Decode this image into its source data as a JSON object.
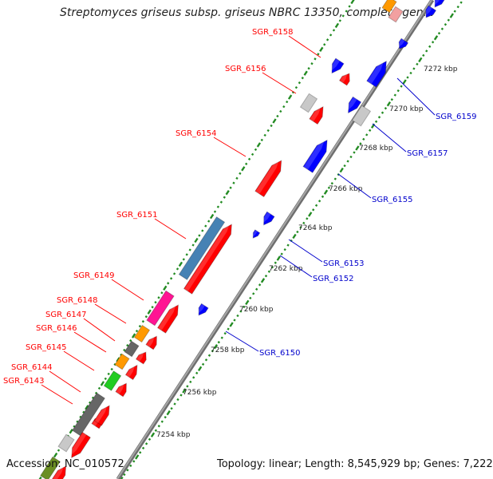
{
  "title": "Streptomyces griseus subsp. griseus NBRC 13350, complete gen...",
  "footer": {
    "accession": "Accession: NC_010572",
    "topology": "Topology: linear; Length: 8,545,929 bp; Genes: 7,222"
  },
  "ticks": [
    "7254 kbp",
    "7256 kbp",
    "7258 kbp",
    "7260 kbp",
    "7262 kbp",
    "7264 kbp",
    "7266 kbp",
    "7268 kbp",
    "7270 kbp",
    "7272 kbp"
  ],
  "genes_reverse": [
    {
      "label": "SGR_6158",
      "color": "#ff0000"
    },
    {
      "label": "SGR_6156",
      "color": "#ff0000"
    },
    {
      "label": "SGR_6154",
      "color": "#ff0000"
    },
    {
      "label": "SGR_6151",
      "color": "#ff0000"
    },
    {
      "label": "SGR_6149",
      "color": "#ff0000"
    },
    {
      "label": "SGR_6148",
      "color": "#ff0000"
    },
    {
      "label": "SGR_6147",
      "color": "#ff0000"
    },
    {
      "label": "SGR_6146",
      "color": "#ff0000"
    },
    {
      "label": "SGR_6145",
      "color": "#ff0000"
    },
    {
      "label": "SGR_6144",
      "color": "#ff0000"
    },
    {
      "label": "SGR_6143",
      "color": "#ff0000"
    }
  ],
  "genes_forward": [
    {
      "label": "SGR_6159",
      "color": "#0000cc"
    },
    {
      "label": "SGR_6157",
      "color": "#0000cc"
    },
    {
      "label": "SGR_6155",
      "color": "#0000cc"
    },
    {
      "label": "SGR_6153",
      "color": "#0000cc"
    },
    {
      "label": "SGR_6152",
      "color": "#0000cc"
    },
    {
      "label": "SGR_6150",
      "color": "#0000cc"
    }
  ],
  "colors": {
    "reverse_gene": "#ff0000",
    "forward_gene": "#0000ff",
    "tick": "#228b22",
    "axis": "#888888",
    "feature_steelblue": "#4682b4",
    "feature_magenta": "#ff1493",
    "feature_orange": "#ff9900",
    "feature_gray": "#666666",
    "feature_green": "#22cc22",
    "feature_lightgray": "#c8c8c8"
  }
}
